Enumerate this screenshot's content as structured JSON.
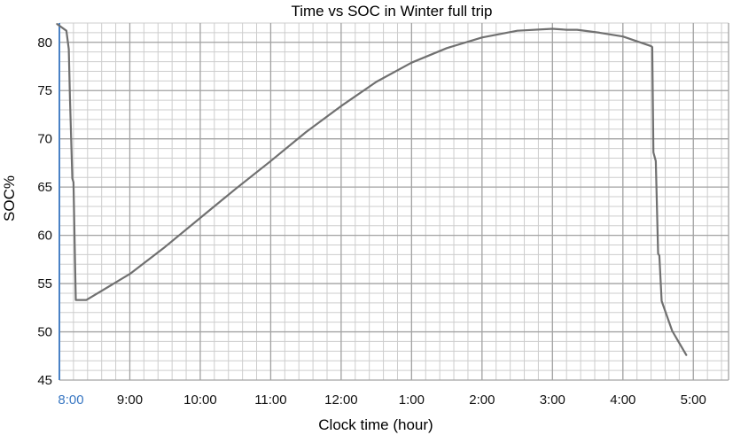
{
  "chart_data": {
    "type": "line",
    "title": "Time vs SOC in Winter full trip",
    "xlabel": "Clock time (hour)",
    "ylabel": "SOC%",
    "x_ticks": [
      "8:00",
      "9:00",
      "10:00",
      "11:00",
      "12:00",
      "1:00",
      "2:00",
      "3:00",
      "4:00",
      "5:00"
    ],
    "x_first_tick_color": "#3a78c3",
    "y_ticks": [
      45,
      50,
      55,
      60,
      65,
      70,
      75,
      80
    ],
    "xlim": [
      "8:00",
      "5:30"
    ],
    "ylim": [
      45,
      82
    ],
    "grid": true,
    "colors": {
      "line": "#707070",
      "grid_major": "#a3a3a3",
      "grid_minor": "#cdcdcd",
      "y_axis_line": "#4a82c6"
    },
    "series": [
      {
        "x": [
          "7:58",
          "8:06",
          "8:08",
          "8:09",
          "8:11",
          "8:12",
          "8:14",
          "8:23",
          "9:00",
          "9:30",
          "10:00",
          "10:30",
          "11:00",
          "11:30",
          "12:00",
          "12:30",
          "1:00",
          "1:30",
          "2:00",
          "2:30",
          "3:00",
          "3:12",
          "3:21",
          "3:40",
          "4:00",
          "4:24",
          "4:25",
          "4:26",
          "4:28",
          "4:30",
          "4:31",
          "4:33",
          "4:42",
          "4:54"
        ],
        "values": [
          81.9,
          81.2,
          79.3,
          74.3,
          65.9,
          65.5,
          53.3,
          53.3,
          56.0,
          58.8,
          61.8,
          64.8,
          67.7,
          70.7,
          73.4,
          75.9,
          77.9,
          79.4,
          80.5,
          81.2,
          81.4,
          81.3,
          81.3,
          81.0,
          80.6,
          79.6,
          79.5,
          68.6,
          67.7,
          58.1,
          57.9,
          53.2,
          50.1,
          47.6
        ]
      }
    ]
  }
}
